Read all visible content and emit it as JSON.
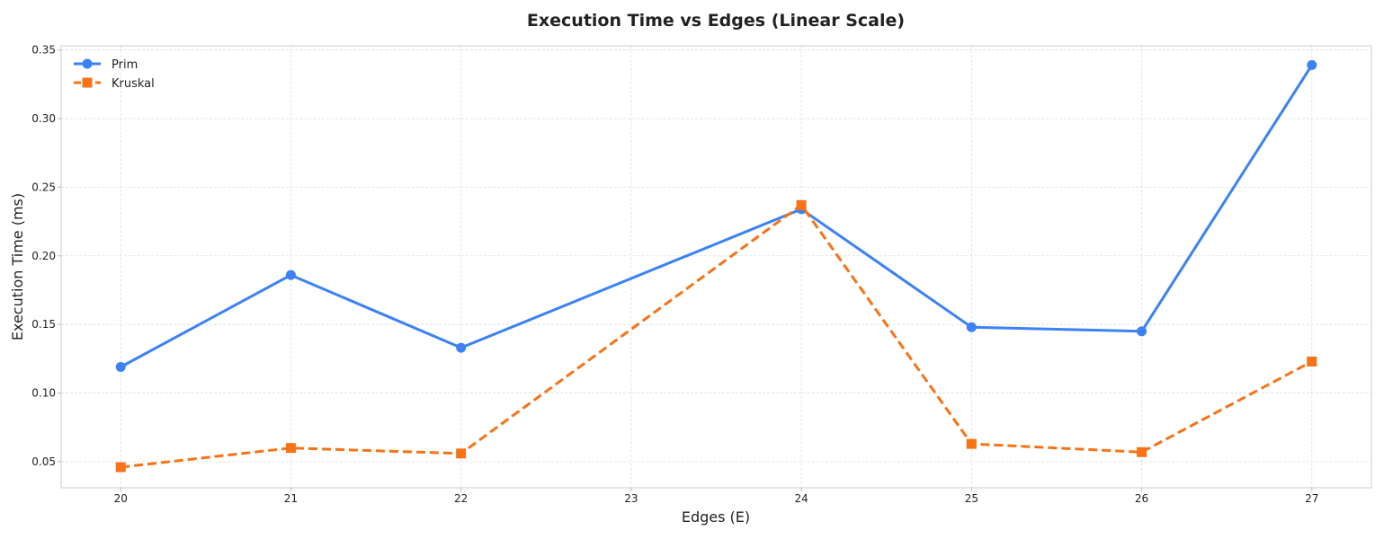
{
  "chart_data": {
    "type": "line",
    "title": "Execution Time vs Edges (Linear Scale)",
    "xlabel": "Edges (E)",
    "ylabel": "Execution Time (ms)",
    "x": [
      20,
      21,
      22,
      23,
      24,
      25,
      26,
      27
    ],
    "xticks": [
      20,
      21,
      22,
      23,
      24,
      25,
      26,
      27
    ],
    "xlim": [
      19.65,
      27.35
    ],
    "yticks": [
      0.05,
      0.1,
      0.15,
      0.2,
      0.25,
      0.3,
      0.35
    ],
    "yticklabels": [
      "0.05",
      "0.10",
      "0.15",
      "0.20",
      "0.25",
      "0.30",
      "0.35"
    ],
    "ylim": [
      0.031,
      0.353
    ],
    "grid": true,
    "legend_position": "top-left",
    "series": [
      {
        "name": "Prim",
        "x": [
          20,
          21,
          22,
          24,
          25,
          26,
          27
        ],
        "values": [
          0.119,
          0.186,
          0.133,
          0.234,
          0.148,
          0.145,
          0.339
        ],
        "color": "#3b82f6",
        "marker": "circle",
        "linestyle": "solid"
      },
      {
        "name": "Kruskal",
        "x": [
          20,
          21,
          22,
          24,
          25,
          26,
          27
        ],
        "values": [
          0.046,
          0.06,
          0.056,
          0.237,
          0.063,
          0.057,
          0.123
        ],
        "color": "#f97316",
        "marker": "square",
        "linestyle": "dashed"
      }
    ]
  }
}
